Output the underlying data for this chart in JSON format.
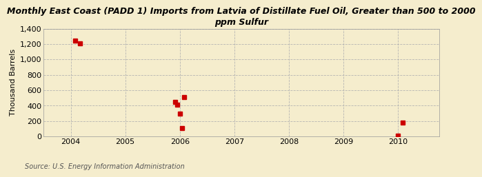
{
  "title": "Monthly East Coast (PADD 1) Imports from Latvia of Distillate Fuel Oil, Greater than 500 to 2000\nppm Sulfur",
  "ylabel": "Thousand Barrels",
  "source": "Source: U.S. Energy Information Administration",
  "background_color": "#f5edcd",
  "data_points_x": [
    2004.083,
    2004.167,
    2005.917,
    2005.958,
    2006.0,
    2006.04,
    2006.083,
    2010.0,
    2010.083
  ],
  "data_points_y": [
    1240,
    1210,
    445,
    410,
    300,
    105,
    515,
    10,
    180
  ],
  "marker_color": "#cc0000",
  "marker_size": 4,
  "xlim": [
    2003.5,
    2010.75
  ],
  "ylim": [
    0,
    1400
  ],
  "yticks": [
    0,
    200,
    400,
    600,
    800,
    1000,
    1200,
    1400
  ],
  "xticks": [
    2004,
    2005,
    2006,
    2007,
    2008,
    2009,
    2010
  ],
  "grid_color": "#b0b0b0",
  "grid_style": "--",
  "title_fontsize": 9,
  "ylabel_fontsize": 8,
  "tick_fontsize": 8,
  "source_fontsize": 7
}
